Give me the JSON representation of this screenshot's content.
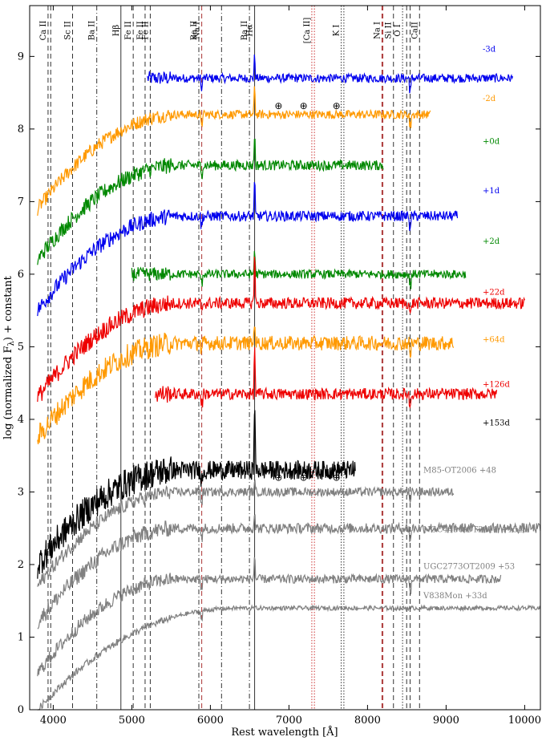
{
  "chart_data": {
    "type": "line",
    "xlabel": "Rest wavelength [Å]",
    "ylabel": "log (normalized F",
    "ylabel_sub": "λ",
    "ylabel_tail": ") + constant",
    "xlim": [
      3700,
      10200
    ],
    "ylim": [
      0,
      9.7
    ],
    "xticks": [
      {
        "value": 4000,
        "label": "4000"
      },
      {
        "value": 5000,
        "label": "5000"
      },
      {
        "value": 6000,
        "label": "6000"
      },
      {
        "value": 7000,
        "label": "7000"
      },
      {
        "value": 8000,
        "label": "8000"
      },
      {
        "value": 9000,
        "label": "9000"
      },
      {
        "value": 10000,
        "label": "10000"
      }
    ],
    "yticks": [
      {
        "value": 0,
        "label": "0"
      },
      {
        "value": 1,
        "label": "1"
      },
      {
        "value": 2,
        "label": "2"
      },
      {
        "value": 3,
        "label": "3"
      },
      {
        "value": 4,
        "label": "4"
      },
      {
        "value": 5,
        "label": "5"
      },
      {
        "value": 6,
        "label": "6"
      },
      {
        "value": 7,
        "label": "7"
      },
      {
        "value": 8,
        "label": "8"
      },
      {
        "value": 9,
        "label": "9"
      }
    ],
    "line_ids": [
      {
        "wl": 3934,
        "style": "dashed",
        "color": "#333333",
        "label": "Ca II"
      },
      {
        "wl": 3968,
        "style": "dashed",
        "color": "#333333",
        "label": ""
      },
      {
        "wl": 4246,
        "style": "dashed",
        "color": "#333333",
        "label": "Sc II"
      },
      {
        "wl": 4554,
        "style": "dashdot",
        "color": "#333333",
        "label": "Ba II"
      },
      {
        "wl": 4861,
        "style": "solid",
        "color": "#333333",
        "label": "Hβ"
      },
      {
        "wl": 5018,
        "style": "dashed",
        "color": "#333333",
        "label": "Fe II"
      },
      {
        "wl": 5169,
        "style": "dashed",
        "color": "#333333",
        "label": "Fe II"
      },
      {
        "wl": 5235,
        "style": "dashed",
        "color": "#333333",
        "label": "Fe II"
      },
      {
        "wl": 5853,
        "style": "dashdot",
        "color": "#333333",
        "label": "Ba II"
      },
      {
        "wl": 5890,
        "style": "dashed",
        "color": "#aa3333",
        "label": "Na I"
      },
      {
        "wl": 6142,
        "style": "dashdot",
        "color": "#333333",
        "label": ""
      },
      {
        "wl": 6497,
        "style": "dashdot",
        "color": "#333333",
        "label": "Ba II"
      },
      {
        "wl": 6563,
        "style": "solid",
        "color": "#333333",
        "label": "Hα"
      },
      {
        "wl": 7291,
        "style": "dotted",
        "color": "#cc3333",
        "label": "[Ca II]"
      },
      {
        "wl": 7324,
        "style": "dotted",
        "color": "#cc3333",
        "label": ""
      },
      {
        "wl": 7665,
        "style": "dotted",
        "color": "#333333",
        "label": "K I"
      },
      {
        "wl": 7699,
        "style": "dotted",
        "color": "#333333",
        "label": ""
      },
      {
        "wl": 8183,
        "style": "dashed",
        "color": "#aa3333",
        "label": "Na I"
      },
      {
        "wl": 8195,
        "style": "dashed",
        "color": "#aa3333",
        "label": ""
      },
      {
        "wl": 8330,
        "style": "dashed",
        "color": "#333333",
        "label": "Si II"
      },
      {
        "wl": 8446,
        "style": "dotted",
        "color": "#333333",
        "label": "O I"
      },
      {
        "wl": 8498,
        "style": "dashed",
        "color": "#333333",
        "label": ""
      },
      {
        "wl": 8542,
        "style": "dashed",
        "color": "#333333",
        "label": ""
      },
      {
        "wl": 8662,
        "style": "dashed",
        "color": "#333333",
        "label": "CaII"
      }
    ],
    "series": [
      {
        "name": "-3d",
        "color": "#0000ee",
        "x_range": [
          5200,
          9850
        ],
        "base": 8.7,
        "shape": "late",
        "noise": 0.06,
        "halpha": 0.35,
        "label_y": 9.1
      },
      {
        "name": "-2d",
        "color": "#ff9900",
        "x_range": [
          3800,
          8800
        ],
        "base": 8.2,
        "shape": "full",
        "noise": 0.06,
        "halpha": 0.45,
        "label_y": 8.42
      },
      {
        "name": "+0d",
        "color": "#008800",
        "x_range": [
          3800,
          8200
        ],
        "base": 7.5,
        "shape": "full",
        "noise": 0.07,
        "halpha": 0.5,
        "label_y": 7.83
      },
      {
        "name": "+1d",
        "color": "#0000ee",
        "x_range": [
          3800,
          9150
        ],
        "base": 6.8,
        "shape": "full",
        "noise": 0.07,
        "halpha": 0.55,
        "label_y": 7.15
      },
      {
        "name": "+2d",
        "color": "#008800",
        "x_range": [
          5000,
          9250
        ],
        "base": 6.0,
        "shape": "late",
        "noise": 0.06,
        "halpha": 0.4,
        "label_y": 6.45
      },
      {
        "name": "+22d",
        "color": "#ee0000",
        "x_range": [
          3800,
          10000
        ],
        "base": 5.6,
        "shape": "full",
        "noise": 0.08,
        "halpha": 0.85,
        "label_y": 5.75
      },
      {
        "name": "+64d",
        "color": "#ff9900",
        "x_range": [
          3800,
          9100
        ],
        "base": 5.05,
        "shape": "full",
        "noise": 0.1,
        "halpha": 0.4,
        "label_y": 5.1
      },
      {
        "name": "+126d",
        "color": "#ee0000",
        "x_range": [
          5300,
          9650
        ],
        "base": 4.35,
        "shape": "late",
        "noise": 0.08,
        "halpha": 0.7,
        "label_y": 4.48
      },
      {
        "name": "+153d",
        "color": "#000000",
        "x_range": [
          3800,
          7850
        ],
        "base": 3.3,
        "shape": "black",
        "noise": 0.13,
        "halpha": 1.1,
        "label_y": 3.95
      },
      {
        "name": "M85-OT2006 +48",
        "color": "#808080",
        "x_range": [
          3800,
          9100
        ],
        "base": 3.0,
        "shape": "full",
        "noise": 0.06,
        "halpha": 0.15,
        "label_y": 3.3
      },
      {
        "name": "NGC4490-OT2011 +154d",
        "color": "#808080",
        "x_range": [
          3800,
          10200
        ],
        "base": 2.5,
        "shape": "full",
        "noise": 0.07,
        "halpha": 0.3,
        "label_y": 2.48
      },
      {
        "name": "UGC2773OT2009 +53",
        "color": "#808080",
        "x_range": [
          3800,
          9700
        ],
        "base": 1.8,
        "shape": "full",
        "noise": 0.06,
        "halpha": 0.4,
        "label_y": 1.97
      },
      {
        "name": "V838Mon +33d",
        "color": "#808080",
        "x_range": [
          3800,
          10200
        ],
        "base": 1.4,
        "shape": "smooth",
        "noise": 0.03,
        "halpha": 0.0,
        "label_y": 1.57
      }
    ],
    "telluric_markers": [
      {
        "wl": 6867,
        "y": 8.32,
        "label": "⊕"
      },
      {
        "wl": 7186,
        "y": 8.32,
        "label": "⊕"
      },
      {
        "wl": 7605,
        "y": 8.32,
        "label": "⊕"
      },
      {
        "wl": 6867,
        "y": 3.2,
        "label": "⊕"
      },
      {
        "wl": 7186,
        "y": 3.2,
        "label": "⊕"
      },
      {
        "wl": 7605,
        "y": 3.2,
        "label": "⊕"
      }
    ]
  }
}
